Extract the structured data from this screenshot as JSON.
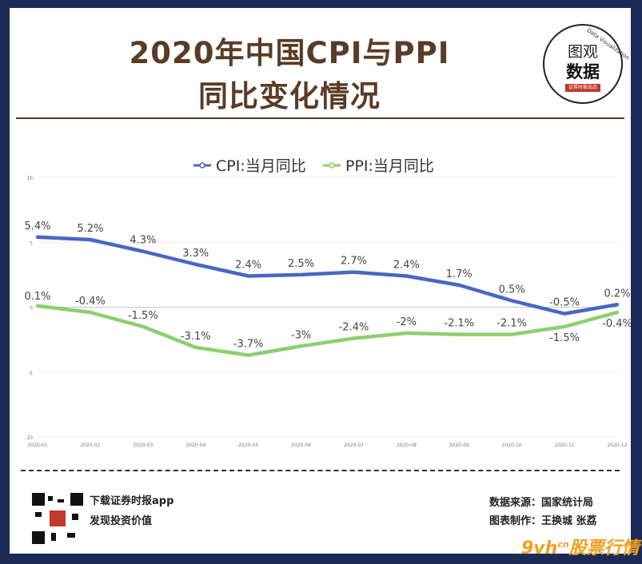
{
  "title_line1": "2020年中国CPI与PPI",
  "title_line2": "同比变化情况",
  "logo": {
    "text_top": "图观",
    "text_main": "数据",
    "badge": "证券时报出品",
    "arc_text": "Data Visualization"
  },
  "chart_data": {
    "type": "line",
    "categories": [
      "2020-01",
      "2020-02",
      "2020-03",
      "2020-04",
      "2020-05",
      "2020-06",
      "2020-07",
      "2020-08",
      "2020-09",
      "2020-10",
      "2020-11",
      "2020-12"
    ],
    "series": [
      {
        "name": "CPI:当月同比",
        "color": "#4a66c4",
        "values": [
          5.4,
          5.2,
          4.3,
          3.3,
          2.4,
          2.5,
          2.7,
          2.4,
          1.7,
          0.5,
          -0.5,
          0.2
        ],
        "labels": [
          "5.4%",
          "5.2%",
          "4.3%",
          "3.3%",
          "2.4%",
          "2.5%",
          "2.7%",
          "2.4%",
          "1.7%",
          "0.5%",
          "-0.5%",
          "0.2%"
        ]
      },
      {
        "name": "PPI:当月同比",
        "color": "#8ccf6e",
        "values": [
          0.1,
          -0.4,
          -1.5,
          -3.1,
          -3.7,
          -3.0,
          -2.4,
          -2.0,
          -2.1,
          -2.1,
          -1.5,
          -0.4
        ],
        "labels": [
          "0.1%",
          "-0.4%",
          "-1.5%",
          "-3.1%",
          "-3.7%",
          "-3%",
          "-2.4%",
          "-2%",
          "-2.1%",
          "-2.1%",
          "-1.5%",
          "-0.4%"
        ]
      }
    ],
    "ylim": [
      -10,
      10
    ],
    "yticks": [
      "10",
      "5",
      "0",
      "-5",
      "-10"
    ],
    "ytick_values": [
      10,
      5,
      0,
      -5,
      -10
    ],
    "legend_position": "top-center",
    "grid": true
  },
  "footer": {
    "download_text": "下载证券时报app",
    "discover_text": "发现投资价值",
    "source_text": "数据来源：国家统计局",
    "author_text": "图表制作：王换城 张荔"
  },
  "watermark": {
    "prefix": "9vh",
    "domain": "cn",
    "text": "股票行情"
  }
}
